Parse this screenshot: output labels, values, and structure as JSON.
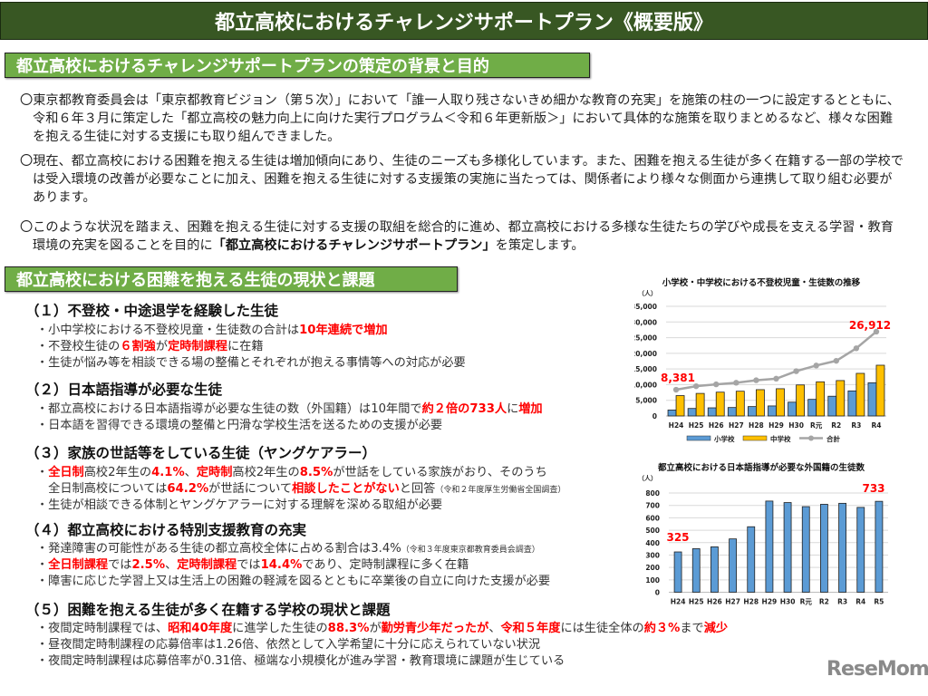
{
  "title": "都立高校におけるチャレンジサポートプラン《概要版》",
  "section1": {
    "heading": "都立高校におけるチャレンジサポートプランの策定の背景と目的",
    "paragraphs": [
      [
        {
          "t": "〇東京都教育委員会は「東京都教育ビジョン（第５次）」において「誰一人取り残さないきめ細かな教育の充実」を施策の柱の一つに設定するとともに、令和６年３月に策定した「都立高校の魅力向上に向けた実行プログラム＜令和６年更新版＞」において具体的な施策を取りまとめるなど、様々な困難を抱える生徒に対する支援にも取り組んできました。",
          "s": "n"
        }
      ],
      [
        {
          "t": "〇現在、都立高校における困難を抱える生徒は増加傾向にあり、生徒のニーズも多様化しています。また、困難を抱える生徒が多く在籍する一部の学校では受入環境の改善が必要なことに加え、困難を抱える生徒に対する支援策の実施に当たっては、関係者により様々な側面から連携して取り組む必要があります。",
          "s": "n"
        }
      ],
      [
        {
          "t": "〇このような状況を踏まえ、困難を抱える生徒に対する支援の取組を総合的に進め、都立高校における多様な生徒たちの学びや成長を支える学習・教育環境の充実を図ることを目的に",
          "s": "n"
        },
        {
          "t": "「都立高校におけるチャレンジサポートプラン」",
          "s": "b"
        },
        {
          "t": "を策定します。",
          "s": "n"
        }
      ]
    ]
  },
  "section2": {
    "heading": "都立高校における困難を抱える生徒の現状と課題",
    "items": [
      {
        "heading": "（１）不登校・中途退学を経験した生徒",
        "bullets": [
          [
            {
              "t": "・小中学校における不登校児童・生徒数の合計は",
              "s": "n"
            },
            {
              "t": "10年連続で増加",
              "s": "r"
            }
          ],
          [
            {
              "t": "・不登校生徒の",
              "s": "n"
            },
            {
              "t": "６割強",
              "s": "r"
            },
            {
              "t": "が",
              "s": "n"
            },
            {
              "t": "定時制課程",
              "s": "r"
            },
            {
              "t": "に在籍",
              "s": "n"
            }
          ],
          [
            {
              "t": "・生徒が悩み等を相談できる場の整備とそれぞれが抱える事情等への対応が必要",
              "s": "n"
            }
          ]
        ]
      },
      {
        "heading": "（２）日本語指導が必要な生徒",
        "bullets": [
          [
            {
              "t": "・都立高校における日本語指導が必要な生徒の数（外国籍）は10年間で",
              "s": "n"
            },
            {
              "t": "約２倍の733人",
              "s": "r"
            },
            {
              "t": "に",
              "s": "n"
            },
            {
              "t": "増加",
              "s": "r"
            }
          ],
          [
            {
              "t": "・日本語を習得できる環境の整備と円滑な学校生活を送るための支援が必要",
              "s": "n"
            }
          ]
        ]
      },
      {
        "heading": "（３）家族の世話等をしている生徒（ヤングケアラー）",
        "bullets": [
          [
            {
              "t": "・",
              "s": "n"
            },
            {
              "t": "全日制",
              "s": "r"
            },
            {
              "t": "高校2年生の",
              "s": "n"
            },
            {
              "t": "4.1%",
              "s": "r"
            },
            {
              "t": "、",
              "s": "n"
            },
            {
              "t": "定時制",
              "s": "r"
            },
            {
              "t": "高校2年生の",
              "s": "n"
            },
            {
              "t": "8.5%",
              "s": "r"
            },
            {
              "t": "が世話をしている家族がおり、そのうち",
              "s": "n"
            }
          ],
          [
            {
              "t": "　全日制高校については",
              "s": "n"
            },
            {
              "t": "64.2%",
              "s": "r"
            },
            {
              "t": "が世話について",
              "s": "n"
            },
            {
              "t": "相談したことがない",
              "s": "r"
            },
            {
              "t": "と回答",
              "s": "n"
            },
            {
              "t": "（令和２年度厚生労働省全国調査）",
              "s": "s"
            }
          ],
          [
            {
              "t": "・生徒が相談できる体制とヤングケアラーに対する理解を深める取組が必要",
              "s": "n"
            }
          ]
        ]
      },
      {
        "heading": "（４）都立高校における特別支援教育の充実",
        "bullets": [
          [
            {
              "t": "・発達障害の可能性がある生徒の都立高校全体に占める割合は3.4%",
              "s": "n"
            },
            {
              "t": "（令和３年度東京都教育委員会調査）",
              "s": "s"
            }
          ],
          [
            {
              "t": "・",
              "s": "n"
            },
            {
              "t": "全日制課程",
              "s": "r"
            },
            {
              "t": "では",
              "s": "n"
            },
            {
              "t": "2.5%",
              "s": "r"
            },
            {
              "t": "、",
              "s": "n"
            },
            {
              "t": "定時制課程",
              "s": "r"
            },
            {
              "t": "では",
              "s": "n"
            },
            {
              "t": "14.4%",
              "s": "r"
            },
            {
              "t": "であり、定時制課程に多く在籍",
              "s": "n"
            }
          ],
          [
            {
              "t": "・障害に応じた学習上又は生活上の困難の軽減を図るとともに卒業後の自立に向けた支援が必要",
              "s": "n"
            }
          ]
        ]
      },
      {
        "heading": "（５）困難を抱える生徒が多く在籍する学校の現状と課題",
        "bullets": [
          [
            {
              "t": "・夜間定時制課程では、",
              "s": "n"
            },
            {
              "t": "昭和40年度",
              "s": "r"
            },
            {
              "t": "に進学した生徒の",
              "s": "n"
            },
            {
              "t": "88.3%",
              "s": "r"
            },
            {
              "t": "が",
              "s": "n"
            },
            {
              "t": "勤労青少年だったが",
              "s": "r"
            },
            {
              "t": "、",
              "s": "n"
            },
            {
              "t": "令和５年度",
              "s": "r"
            },
            {
              "t": "には生徒全体の",
              "s": "n"
            },
            {
              "t": "約３%",
              "s": "r"
            },
            {
              "t": "まで",
              "s": "n"
            },
            {
              "t": "減少",
              "s": "r"
            }
          ],
          [
            {
              "t": "・昼夜間定時制課程の応募倍率は1.26倍、依然として入学希望に十分に応えられていない状況",
              "s": "n"
            }
          ],
          [
            {
              "t": "・夜間定時制課程は応募倍率が0.31倍、極端な小規模化が進み学習・教育環境に課題が生じている",
              "s": "n"
            }
          ]
        ]
      }
    ]
  },
  "chart_data": [
    {
      "type": "bar+line",
      "title": "小学校・中学校における不登校児童・生徒数の推移",
      "unit": "（人）",
      "categories": [
        "H24",
        "H25",
        "H26",
        "H27",
        "H28",
        "H29",
        "H30",
        "R元",
        "R2",
        "R3",
        "R4"
      ],
      "ylim": [
        0,
        35000
      ],
      "yticks": [
        "0",
        "5,000",
        "10,000",
        "15,000",
        "20,000",
        "25,000",
        "30,000",
        "35,000"
      ],
      "grid": true,
      "legend": "bottom",
      "series": [
        {
          "name": "小学校",
          "type": "bar",
          "color": "#5b9bd5",
          "values": [
            1900,
            2400,
            2600,
            2700,
            3000,
            3200,
            4400,
            5300,
            6300,
            8000,
            10600
          ]
        },
        {
          "name": "中学校",
          "type": "bar",
          "color": "#ffc000",
          "values": [
            6500,
            7200,
            7600,
            7900,
            8400,
            8700,
            9900,
            10900,
            11300,
            13600,
            16200
          ]
        },
        {
          "name": "合計",
          "type": "line",
          "color": "#a5a5a5",
          "values": [
            8381,
            9500,
            10100,
            10600,
            11400,
            11900,
            14300,
            16100,
            17600,
            21600,
            26912
          ]
        }
      ],
      "annotations": [
        "8,381",
        "26,912"
      ]
    },
    {
      "type": "bar",
      "title": "都立高校における日本語指導が必要な外国籍の生徒数",
      "unit": "（人）",
      "categories": [
        "H24",
        "H25",
        "H26",
        "H27",
        "H28",
        "H29",
        "H30",
        "R元",
        "R2",
        "R3",
        "R4",
        "R5"
      ],
      "ylim": [
        0,
        800
      ],
      "yticks": [
        "0",
        "100",
        "200",
        "300",
        "400",
        "500",
        "600",
        "700",
        "800"
      ],
      "grid": true,
      "series": [
        {
          "type": "bar",
          "color": "#5b9bd5",
          "values": [
            325,
            351,
            366,
            430,
            528,
            735,
            723,
            690,
            709,
            717,
            684,
            733
          ]
        }
      ],
      "annotations": [
        "325",
        "733"
      ]
    }
  ],
  "logo": "ReseMom",
  "colors": {
    "title_bg": "#385723",
    "section_bg": "#70ad47",
    "highlight": "#ff0000"
  }
}
